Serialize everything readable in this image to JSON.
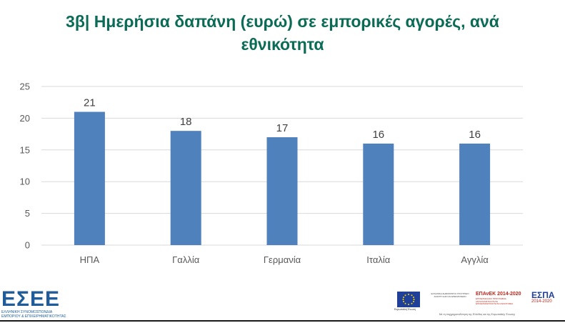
{
  "chart_data": {
    "type": "bar",
    "title": "3β| Ημερήσια δαπάνη (ευρώ) σε εμπορικές αγορές, ανά εθνικότητα",
    "categories": [
      "ΗΠΑ",
      "Γαλλία",
      "Γερμανία",
      "Ιταλία",
      "Αγγλία"
    ],
    "values": [
      21,
      18,
      17,
      16,
      16
    ],
    "data_labels": [
      "21",
      "18",
      "17",
      "16",
      "16"
    ],
    "yticks": [
      "0",
      "5",
      "10",
      "15",
      "20",
      "25"
    ],
    "ylim": [
      0,
      25
    ],
    "grid": true,
    "legend": "none",
    "bar_color": "#4f81bd",
    "grid_color": "#d9d9d9"
  },
  "footer": {
    "logo_text": "ΕΣΕΕ",
    "logo_subtext": "ΕΛΛΗΝΙΚΗ ΣΥΝΟΜΟΣΠΟΝΔΙΑ ΕΜΠΟΡΙΟΥ & ΕΠΙΧΕΙΡΗΜΑΤΙΚΟΤΗΤΑΣ",
    "eu_caption": "Ευρωπαϊκή Ένωση",
    "gr_text": "ΕΛΛΗΝΙΚΗ ΔΗΜΟΚΡΑΤΙΑ ΥΠΟΥΡΓΕΙΟ ΑΝΑΠΤΥΞΗΣ ΚΑΙ ΕΠΕΝΔΥΣΕΩΝ",
    "epanek_title": "ΕΠΑνΕΚ 2014-2020",
    "epanek_sub": "ΕΠΙΧΕΙΡΗΣΙΑΚΟ ΠΡΟΓΡΑΜΜΑ ΑΝΤΑΓΩΝΙΣΤΙΚΟΤΗΤΑ ΕΠΙΧΕΙΡΗΜΑΤΙΚΟΤΗΤΑ ΚΑΙΝΟΤΟΜΙΑ",
    "espa_title": "ΕΣΠΑ",
    "espa_sub": "2014-2020",
    "banner_caption": "Με τη συγχρηματοδότηση της Ελλάδας και της Ευρωπαϊκής Ένωσης"
  }
}
